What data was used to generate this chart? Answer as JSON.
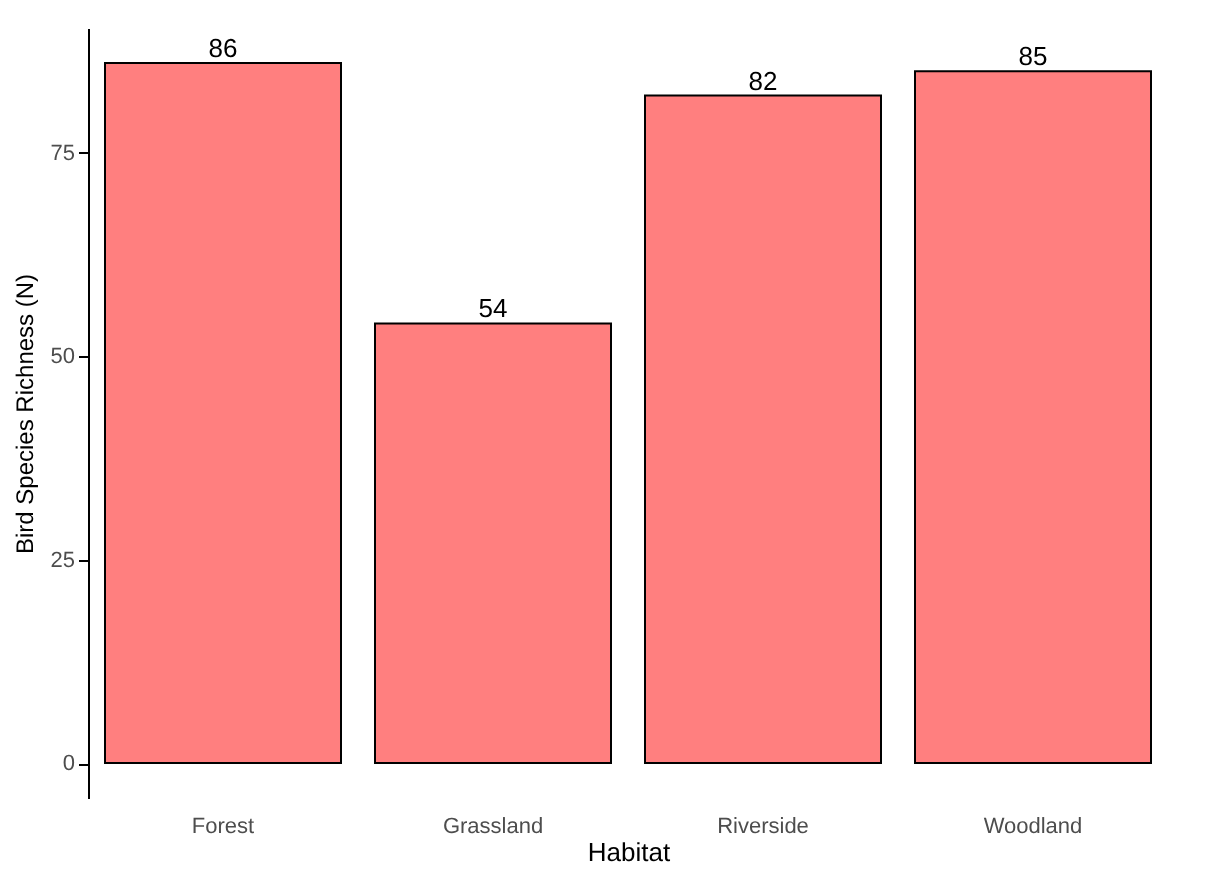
{
  "chart_data": {
    "type": "bar",
    "xlabel": "Habitat",
    "ylabel": "Bird Species Richness (N)",
    "categories": [
      "Forest",
      "Grassland",
      "Riverside",
      "Woodland"
    ],
    "values": [
      86,
      54,
      82,
      85
    ],
    "color": "#ff7f7f",
    "ylim": [
      -4.3,
      90.3
    ],
    "yticks": [
      0,
      25,
      50,
      75
    ],
    "data_labels": true,
    "grid": false
  }
}
